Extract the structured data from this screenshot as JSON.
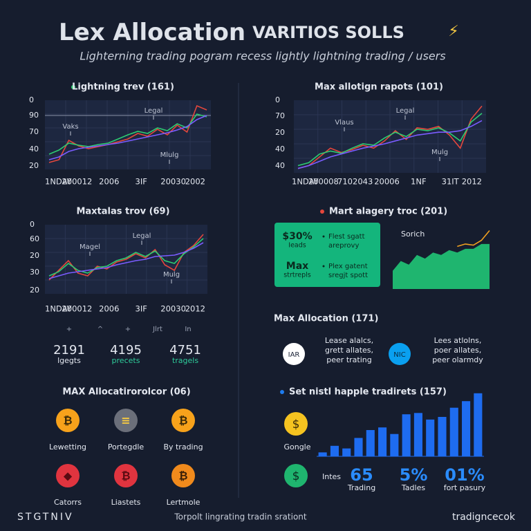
{
  "header": {
    "title": "Lex Allocation",
    "title_suffix": "VARITIOS SOLLS",
    "icon": "⚡",
    "subtitle": "Lighterning trading pogram recess lightly lightning trading / users"
  },
  "charts": [
    {
      "type": "line",
      "title": "Lightning trev (161)",
      "y_labels": [
        "0",
        "90",
        "70",
        "40",
        "20"
      ],
      "x_labels": [
        "1NDAY",
        "200012",
        "2006",
        "3IF",
        "20030",
        "2002"
      ],
      "annotations": [
        "Legal",
        "Vaks",
        "Mlulg"
      ],
      "ylim": [
        0,
        100
      ],
      "series": [
        {
          "color": "#e5473c",
          "values": [
            10,
            14,
            42,
            34,
            30,
            33,
            36,
            40,
            44,
            52,
            48,
            58,
            50,
            64,
            54,
            92,
            86
          ]
        },
        {
          "color": "#2ecc71",
          "values": [
            22,
            28,
            38,
            35,
            33,
            36,
            38,
            44,
            50,
            55,
            52,
            60,
            56,
            66,
            60,
            80,
            76
          ]
        },
        {
          "color": "#7a5cff",
          "values": [
            14,
            18,
            26,
            30,
            32,
            34,
            36,
            38,
            41,
            44,
            47,
            50,
            53,
            57,
            62,
            72,
            78
          ]
        }
      ]
    },
    {
      "type": "line",
      "title": "Max allotign rapots (101)",
      "y_labels": [
        "0",
        "70",
        "20",
        "40",
        "40"
      ],
      "x_labels": [
        "1NDAY",
        "200008",
        "7102043",
        "20006",
        "1NF",
        "31IT",
        "2012"
      ],
      "annotations": [
        "Legal",
        "Vlaus",
        "Mulg"
      ],
      "ylim": [
        0,
        100
      ],
      "series": [
        {
          "color": "#e5473c",
          "values": [
            6,
            10,
            22,
            34,
            28,
            32,
            38,
            34,
            44,
            58,
            46,
            62,
            60,
            64,
            52,
            34,
            74,
            92
          ]
        },
        {
          "color": "#2ecc71",
          "values": [
            10,
            14,
            26,
            30,
            27,
            34,
            40,
            38,
            48,
            56,
            50,
            60,
            58,
            62,
            55,
            44,
            70,
            82
          ]
        },
        {
          "color": "#7a5cff",
          "values": [
            6,
            10,
            16,
            22,
            26,
            30,
            34,
            37,
            40,
            44,
            48,
            52,
            54,
            56,
            56,
            58,
            64,
            72
          ]
        }
      ]
    },
    {
      "type": "line",
      "title": "Maxtalas trov (69)",
      "y_labels": [
        "0",
        "60",
        "20",
        "30",
        "20"
      ],
      "x_labels": [
        "1NDAY",
        "200012",
        "2006",
        "3IF",
        "20030",
        "2012"
      ],
      "annotations": [
        "Magel",
        "Legal",
        "Mulg"
      ],
      "ylim": [
        0,
        100
      ],
      "series": [
        {
          "color": "#e5473c",
          "values": [
            20,
            34,
            48,
            30,
            26,
            40,
            36,
            46,
            50,
            58,
            52,
            64,
            42,
            34,
            60,
            70,
            86
          ]
        },
        {
          "color": "#2ecc71",
          "values": [
            26,
            32,
            44,
            34,
            30,
            38,
            40,
            48,
            52,
            60,
            54,
            62,
            48,
            44,
            58,
            68,
            80
          ]
        },
        {
          "color": "#7a5cff",
          "values": [
            22,
            26,
            30,
            32,
            34,
            36,
            38,
            42,
            45,
            48,
            50,
            54,
            55,
            56,
            60,
            66,
            74
          ]
        }
      ]
    },
    {
      "type": "area",
      "title": "Mart alagery troc (201)",
      "label": "Sorich",
      "ylim": [
        0,
        100
      ],
      "series": [
        {
          "color": "#1fb56f",
          "values": [
            30,
            46,
            40,
            56,
            50,
            60,
            56,
            64,
            60,
            66,
            66,
            74,
            74
          ]
        },
        {
          "color": "#f0a020",
          "values": [
            null,
            null,
            null,
            null,
            null,
            null,
            null,
            null,
            70,
            74,
            72,
            80,
            96
          ]
        }
      ]
    },
    {
      "type": "bar",
      "title": "Set nistl happle tradirets (157)",
      "color": "#1e6cf0",
      "ylim": [
        0,
        100
      ],
      "values": [
        6,
        16,
        12,
        28,
        40,
        44,
        34,
        64,
        66,
        56,
        60,
        74,
        84,
        96
      ]
    }
  ],
  "markers": [
    "+",
    "^",
    "+",
    "Jlrt",
    "In"
  ],
  "stats": [
    {
      "value": "2191",
      "label": "lgegts"
    },
    {
      "value": "4195",
      "label": "precets"
    },
    {
      "value": "4751",
      "label": "tragels"
    }
  ],
  "callout": {
    "cells": [
      {
        "value": "$30%",
        "label": "Ieads"
      },
      {
        "value": "Max",
        "label": "strtrepls"
      }
    ],
    "notes": [
      [
        "Flest sgatt",
        "areprovy"
      ],
      [
        "Plex gatent",
        "sregjt spott"
      ]
    ]
  },
  "allocation": {
    "title": "Max Allocation (171)",
    "items": [
      {
        "badge": "IAR",
        "lines": [
          "Lease alalcs,",
          "grett allates,",
          "peer trating"
        ]
      },
      {
        "badge": "NIC",
        "lines": [
          "Lees atlolns,",
          "poer allates,",
          "peer olarmdy"
        ]
      }
    ]
  },
  "icons": {
    "title": "MAX Allocatirorolcor (06)",
    "items": [
      {
        "glyph": "₿",
        "label": "Lewetting"
      },
      {
        "glyph": "≡",
        "label": "Portegdle"
      },
      {
        "glyph": "₿",
        "label": "By trading"
      },
      {
        "glyph": "◆",
        "label": "Catorrs"
      },
      {
        "glyph": "₿",
        "label": "Liastets"
      },
      {
        "glyph": "₿",
        "label": "Lertmole"
      }
    ]
  },
  "coins": [
    {
      "glyph": "$",
      "label": "Gongle"
    },
    {
      "glyph": "$",
      "label": "Intes"
    }
  ],
  "metrics": [
    {
      "value": "65",
      "label": "Trading"
    },
    {
      "value": "5%",
      "label": "Tadles"
    },
    {
      "value": "01%",
      "label": "fort pasury"
    }
  ],
  "footer": {
    "left": "STGTNIV",
    "center": "Torpolt lingrating tradin srationt",
    "right": "tradigncecok"
  }
}
